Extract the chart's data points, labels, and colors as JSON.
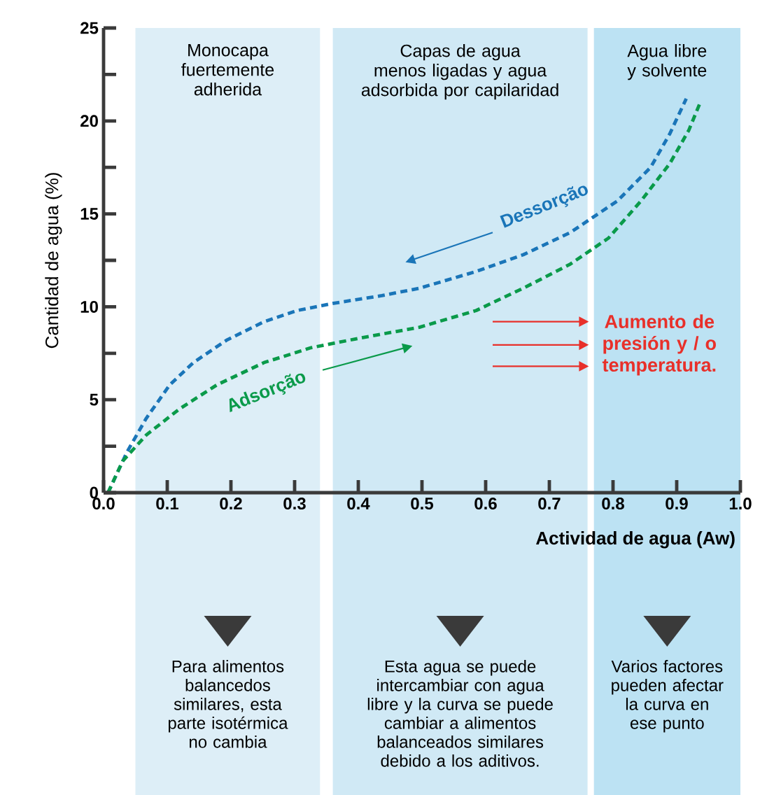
{
  "chart_data": {
    "type": "line",
    "xlabel": "Actividad de agua (Aw)",
    "ylabel": "Cantidad de agua (%)",
    "xlim": [
      0,
      1
    ],
    "ylim": [
      0,
      25
    ],
    "xticks": [
      {
        "value": 0,
        "label": "0.0"
      },
      0.1,
      0.2,
      0.3,
      0.4,
      0.5,
      0.6,
      0.7,
      0.8,
      0.9,
      {
        "value": 1,
        "label": "1.0"
      }
    ],
    "yticks": [
      0,
      {
        "value": 2.5,
        "label": null
      },
      5,
      {
        "value": 7.5,
        "label": null
      },
      10,
      {
        "value": 12.5,
        "label": null
      },
      15,
      {
        "value": 17.5,
        "label": null
      },
      20,
      {
        "value": 22.5,
        "label": null
      },
      25
    ],
    "line_style": "dashed",
    "series": [
      {
        "name": "Dessorção",
        "color": "#1a75b8",
        "x": [
          0.007,
          0.037,
          0.067,
          0.104,
          0.141,
          0.193,
          0.252,
          0.304,
          0.363,
          0.437,
          0.496,
          0.585,
          0.659,
          0.733,
          0.807,
          0.859,
          0.889,
          0.915
        ],
        "values": [
          0,
          2.2,
          4.0,
          5.8,
          7.0,
          8.2,
          9.2,
          9.8,
          10.2,
          10.6,
          11.0,
          11.9,
          12.8,
          14.0,
          15.7,
          17.5,
          19.3,
          21.2
        ]
      },
      {
        "name": "Adsorção",
        "color": "#0a9a4a",
        "x": [
          0.007,
          0.03,
          0.067,
          0.119,
          0.178,
          0.252,
          0.326,
          0.4,
          0.496,
          0.585,
          0.659,
          0.733,
          0.793,
          0.844,
          0.889,
          0.919,
          0.937
        ],
        "values": [
          0,
          1.7,
          3.1,
          4.5,
          5.8,
          7.0,
          7.8,
          8.3,
          8.9,
          9.8,
          11.0,
          12.3,
          13.7,
          15.7,
          17.7,
          19.5,
          21.0
        ]
      }
    ],
    "bands": [
      {
        "axis": "x",
        "from": 0.05,
        "to": 0.34,
        "label": "Monocapa fuertemente adherida",
        "color": "#ddeef7"
      },
      {
        "axis": "x",
        "from": 0.36,
        "to": 0.76,
        "label": "Capas de agua menos ligadas y agua adsorbida por capilaridad",
        "color": "#d0e9f5"
      },
      {
        "axis": "x",
        "from": 0.77,
        "to": 1.0,
        "label": "Agua libre y solvente",
        "color": "#bce2f3"
      }
    ],
    "annotations": [
      "Para alimentos balancedos similares, esta parte isotérmica no cambia",
      "Esta agua se puede intercambiar con agua libre y la curva se puede cambiar a alimentos balanceados similares debido a los aditivos.",
      "Varios factores pueden afectar la curva en ese punto",
      "Aumento de presión y / o temperatura."
    ]
  }
}
